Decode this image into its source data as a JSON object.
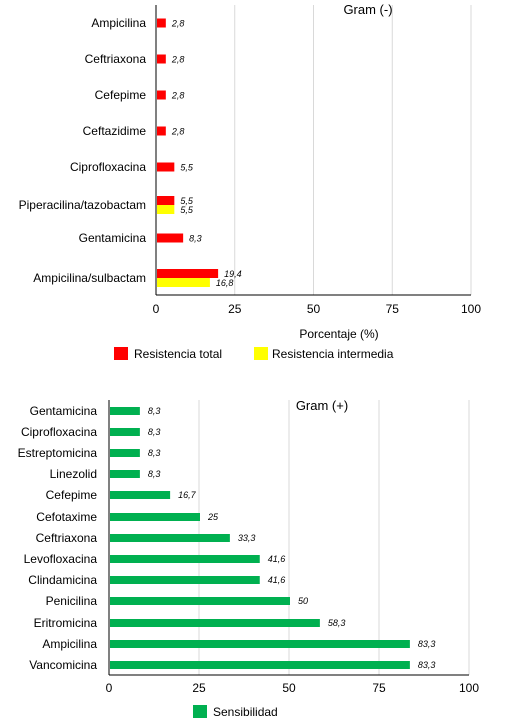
{
  "colors": {
    "resistencia_total": "#ff0000",
    "resistencia_intermedia": "#ffff00",
    "sensibilidad": "#00b050",
    "grid": "#d9d9d9"
  },
  "chart_data": [
    {
      "type": "bar",
      "orientation": "horizontal",
      "title": "Gram (-)",
      "xlabel": "Porcentaje (%)",
      "ylabel": "",
      "xlim": [
        0,
        100
      ],
      "xticks": [
        "0",
        "25",
        "50",
        "75",
        "100"
      ],
      "grid": true,
      "legend_position": "bottom",
      "categories": [
        "Ampicilina",
        "Ceftriaxona",
        "Cefepime",
        "Ceftazidime",
        "Ciprofloxacina",
        "Piperacilina/tazobactam",
        "Gentamicina",
        "Ampicilina/sulbactam"
      ],
      "series": [
        {
          "name": "Resistencia total",
          "color": "#ff0000",
          "values": [
            2.8,
            2.8,
            2.8,
            2.8,
            5.5,
            5.5,
            8.3,
            19.4
          ],
          "labels": [
            "2,8",
            "2,8",
            "2,8",
            "2,8",
            "5,5",
            "5,5",
            "8,3",
            "19,4"
          ]
        },
        {
          "name": "Resistencia intermedia",
          "color": "#ffff00",
          "values": [
            null,
            null,
            null,
            null,
            null,
            5.5,
            null,
            16.8
          ],
          "labels": [
            "",
            "",
            "",
            "",
            "",
            "5,5",
            "",
            "16,8"
          ]
        }
      ]
    },
    {
      "type": "bar",
      "orientation": "horizontal",
      "title": "Gram (+)",
      "xlabel": "",
      "ylabel": "",
      "xlim": [
        0,
        100
      ],
      "xticks": [
        "0",
        "25",
        "50",
        "75",
        "100"
      ],
      "grid": true,
      "legend_position": "bottom",
      "categories": [
        "Gentamicina",
        "Ciprofloxacina",
        "Estreptomicina",
        "Linezolid",
        "Cefepime",
        "Cefotaxime",
        "Ceftriaxona",
        "Levofloxacina",
        "Clindamicina",
        "Penicilina",
        "Eritromicina",
        "Ampicilina",
        "Vancomicina"
      ],
      "series": [
        {
          "name": "Sensibilidad",
          "color": "#00b050",
          "values": [
            8.3,
            8.3,
            8.3,
            8.3,
            16.7,
            25,
            33.3,
            41.6,
            41.6,
            50,
            58.3,
            83.3,
            83.3
          ],
          "labels": [
            "8,3",
            "8,3",
            "8,3",
            "8,3",
            "16,7",
            "25",
            "33,3",
            "41,6",
            "41,6",
            "50",
            "58,3",
            "83,3",
            "83,3"
          ]
        }
      ]
    }
  ]
}
